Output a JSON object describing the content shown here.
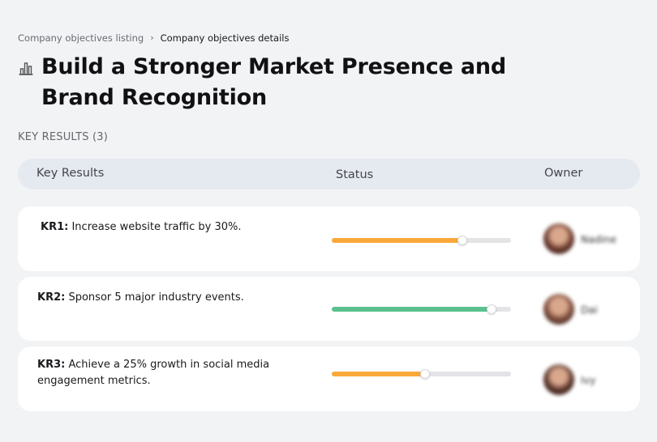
{
  "breadcrumb": {
    "parent": "Company objectives listing",
    "separator": "›",
    "current": "Company objectives details"
  },
  "title": {
    "icon": "bar-chart-icon",
    "text": "Build a Stronger Market Presence and Brand Recognition"
  },
  "key_results_label": "KEY RESULTS (3)",
  "table": {
    "headers": {
      "key_results": "Key Results",
      "status": "Status",
      "owner": "Owner"
    },
    "rows": [
      {
        "code": "KR1:",
        "text": "Increase website traffic by 30%.",
        "progress": 0.73,
        "progress_color": "#f9a93a",
        "owner": "Nadine",
        "avatar_color": "#6b3a2e"
      },
      {
        "code": "KR2:",
        "text": "Sponsor 5 major industry events.",
        "progress": 0.89,
        "progress_color": "#5ac18e",
        "owner": "Dai",
        "avatar_color": "#7a4a3a"
      },
      {
        "code": "KR3:",
        "text": "Achieve a 25% growth in social media engagement metrics.",
        "progress": 0.52,
        "progress_color": "#f9a93a",
        "owner": "Ivy",
        "avatar_color": "#5a342c"
      }
    ]
  }
}
